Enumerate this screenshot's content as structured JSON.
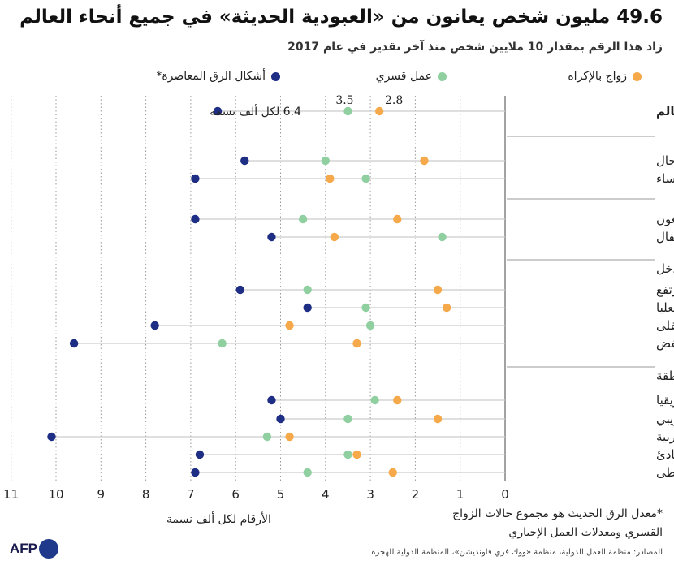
{
  "title": "49.6 مليون شخص يعانون من «العبودية الحديثة» في جميع أنحاء العالم",
  "subtitle": "زاد هذا الرقم بمقدار 10 ملايين شخص منذ آخر تقدير في عام 2017",
  "legend": {
    "forced_marriage": "زواج بالإكراه",
    "forced_labour": "عمل قسري",
    "modern_slavery": "أشكال الرق المعاصرة*"
  },
  "colors": {
    "forced_marriage": "#f5a94a",
    "forced_labour": "#8fcfa0",
    "modern_slavery": "#1e2e84",
    "grid": "#9a9a9a",
    "connector": "#cccccc"
  },
  "x_axis_label": "الأرقام لكل ألف نسمة",
  "world_annotations": {
    "modern_slavery": "6.4 لكل ألف نسمة",
    "forced_labour": "3.5",
    "forced_marriage": "2.8"
  },
  "note": "*معدل الرق الحديث هو مجموع حالات الزواج القسري ومعدلات العمل الإجباري",
  "source": "المصادر: منظمة العمل الدولية، منظمة «ووك فري فاونديشن»، المنظمة الدولية للهجرة",
  "logo_text": "AFP",
  "chart_data": {
    "type": "scatter",
    "title": "49.6 مليون شخص يعانون من «العبودية الحديثة» في جميع أنحاء العالم",
    "xlabel": "الأرقام لكل ألف نسمة",
    "xlim": [
      11,
      0
    ],
    "x_ticks": [
      11,
      10,
      9,
      8,
      7,
      6,
      5,
      4,
      3,
      2,
      1,
      0
    ],
    "series": [
      {
        "name": "زواج بالإكراه",
        "key": "forced_marriage"
      },
      {
        "name": "عمل قسري",
        "key": "forced_labour"
      },
      {
        "name": "أشكال الرق المعاصرة*",
        "key": "modern_slavery"
      }
    ],
    "groups": [
      {
        "header": "",
        "rows": [
          {
            "label": "العالم",
            "bold": true,
            "forced_marriage": 2.8,
            "forced_labour": 3.5,
            "modern_slavery": 6.4
          }
        ]
      },
      {
        "header": "",
        "rows": [
          {
            "label": "رجال",
            "forced_marriage": 1.8,
            "forced_labour": 4.0,
            "modern_slavery": 5.8
          },
          {
            "label": "نساء",
            "forced_marriage": 3.9,
            "forced_labour": 3.1,
            "modern_slavery": 6.9
          }
        ]
      },
      {
        "header": "",
        "rows": [
          {
            "label": "بالغون",
            "forced_marriage": 2.4,
            "forced_labour": 4.5,
            "modern_slavery": 6.9
          },
          {
            "label": "أطفال",
            "forced_marriage": 3.8,
            "forced_labour": 1.4,
            "modern_slavery": 5.2
          }
        ]
      },
      {
        "header": "بلدان ذات دخل",
        "rows": [
          {
            "label": "مرتفع",
            "forced_marriage": 1.5,
            "forced_labour": 4.4,
            "modern_slavery": 5.9
          },
          {
            "label": "شريحة الدخل المتوسط العليا",
            "forced_marriage": 1.3,
            "forced_labour": 3.1,
            "modern_slavery": 4.4
          },
          {
            "label": "شريحة الدخل المتوسط السفلى",
            "forced_marriage": 4.8,
            "forced_labour": 3.0,
            "modern_slavery": 7.8
          },
          {
            "label": "منخفض",
            "forced_marriage": 3.3,
            "forced_labour": 6.3,
            "modern_slavery": 9.6
          }
        ]
      },
      {
        "header": "المنطقة",
        "rows": [
          {
            "label": "إفريقيا",
            "forced_marriage": 2.4,
            "forced_labour": 2.9,
            "modern_slavery": 5.2
          },
          {
            "label": "أميركا والكاريبي",
            "forced_marriage": 1.5,
            "forced_labour": 3.5,
            "modern_slavery": 5.0
          },
          {
            "label": "الدول العربية",
            "forced_marriage": 4.8,
            "forced_labour": 5.3,
            "modern_slavery": 10.1
          },
          {
            "label": "آسيا والمحيط الهادئ",
            "forced_marriage": 3.3,
            "forced_labour": 3.5,
            "modern_slavery": 6.8
          },
          {
            "label": "أوروبا وآسيا الوسطى",
            "forced_marriage": 2.5,
            "forced_labour": 4.4,
            "modern_slavery": 6.9
          }
        ]
      }
    ]
  }
}
